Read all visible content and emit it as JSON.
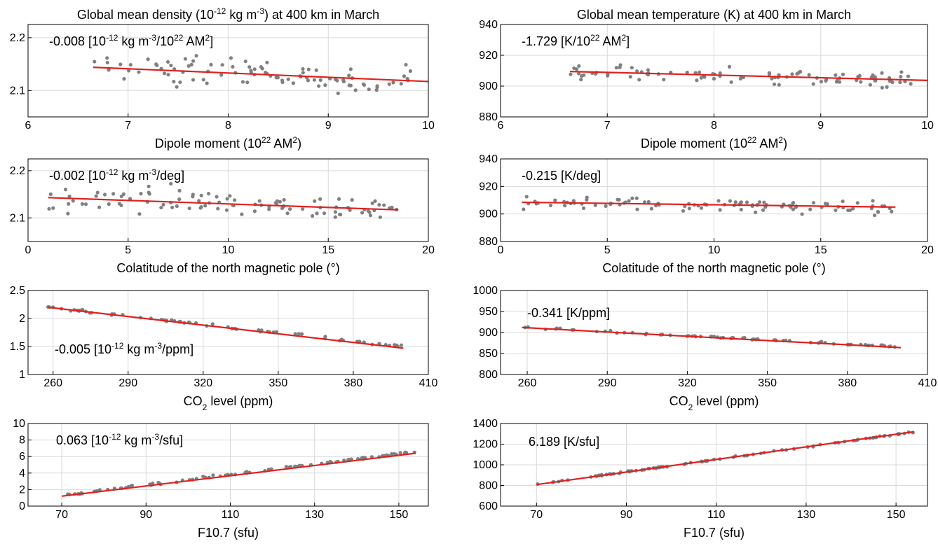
{
  "colors": {
    "points": "#808080",
    "fit": "#e02020",
    "grid": "#d9d9d9",
    "axis": "#000000"
  },
  "chart_data": [
    {
      "type": "scatter",
      "title": "Global mean density (10^-12 kg m^-3) at 400 km in March",
      "title_parts": [
        "Global mean density (10",
        "-12",
        " kg m",
        "-3",
        ") at 400 km in March"
      ],
      "xlabel": "Dipole moment (10^22 AM^2)",
      "xlabel_parts": [
        "Dipole moment (10",
        "22",
        " AM",
        "2",
        ")"
      ],
      "ylabel": "",
      "annotation": "-0.008 [10^-12 kg m^-3/10^22 AM^2]",
      "annotation_parts": [
        "-0.008 [10",
        "-12",
        " kg m",
        "-3",
        "/10",
        "22",
        " AM",
        "2",
        "]"
      ],
      "xlim": [
        6,
        10
      ],
      "ylim": [
        2.05,
        2.225
      ],
      "xticks": [
        6,
        7,
        8,
        9,
        10
      ],
      "yticks": [
        2.1,
        2.2
      ],
      "fit": {
        "x": [
          6.65,
          10.0
        ],
        "y": [
          2.144,
          2.117
        ]
      },
      "points": {
        "x_range": [
          6.65,
          9.85
        ],
        "y_mean": [
          2.144,
          2.118
        ],
        "y_spread": 0.022,
        "n": 95
      }
    },
    {
      "type": "scatter",
      "title": "Global mean temperature (K) at 400 km in March",
      "title_parts": [
        "Global mean temperature (K) at 400 km in March"
      ],
      "xlabel": "Dipole moment (10^22 AM^2)",
      "xlabel_parts": [
        "Dipole moment (10",
        "22",
        " AM",
        "2",
        ")"
      ],
      "ylabel": "",
      "annotation": "-1.729 [K/10^22 AM^2]",
      "annotation_parts": [
        "-1.729 [K/10",
        "22",
        " AM",
        "2",
        "]"
      ],
      "xlim": [
        6,
        10
      ],
      "ylim": [
        880,
        940
      ],
      "xticks": [
        6,
        7,
        8,
        9,
        10
      ],
      "yticks": [
        880,
        900,
        920,
        940
      ],
      "fit": {
        "x": [
          6.65,
          10.0
        ],
        "y": [
          909.5,
          903.7
        ]
      },
      "points": {
        "x_range": [
          6.65,
          9.85
        ],
        "y_mean": [
          909.5,
          904.0
        ],
        "y_spread": 4,
        "n": 95
      }
    },
    {
      "type": "scatter",
      "title": "",
      "title_parts": [],
      "xlabel": "Colatitude of the north magnetic pole (°)",
      "xlabel_parts": [
        "Colatitude of the north magnetic pole (°)"
      ],
      "ylabel": "",
      "annotation": "-0.002 [10^-12 kg m^-3/deg]",
      "annotation_parts": [
        "-0.002 [10",
        "-12",
        " kg m",
        "-3",
        "/deg]"
      ],
      "xlim": [
        0,
        20
      ],
      "ylim": [
        2.05,
        2.225
      ],
      "xticks": [
        0,
        5,
        10,
        15,
        20
      ],
      "yticks": [
        2.1,
        2.2
      ],
      "fit": {
        "x": [
          1.0,
          18.5
        ],
        "y": [
          2.143,
          2.117
        ]
      },
      "points": {
        "x_range": [
          1.0,
          18.5
        ],
        "y_mean": [
          2.143,
          2.118
        ],
        "y_spread": 0.024,
        "n": 100
      }
    },
    {
      "type": "scatter",
      "title": "",
      "title_parts": [],
      "xlabel": "Colatitude of the north magnetic pole (°)",
      "xlabel_parts": [
        "Colatitude of the north magnetic pole (°)"
      ],
      "ylabel": "",
      "annotation": "-0.215 [K/deg]",
      "annotation_parts": [
        "-0.215 [K/deg]"
      ],
      "xlim": [
        0,
        20
      ],
      "ylim": [
        880,
        940
      ],
      "xticks": [
        0,
        5,
        10,
        15,
        20
      ],
      "yticks": [
        880,
        900,
        920,
        940
      ],
      "fit": {
        "x": [
          1.0,
          18.5
        ],
        "y": [
          908.5,
          905.0
        ]
      },
      "points": {
        "x_range": [
          1.0,
          18.5
        ],
        "y_mean": [
          908.5,
          905.0
        ],
        "y_spread": 4,
        "n": 100
      }
    },
    {
      "type": "scatter",
      "title": "",
      "title_parts": [],
      "xlabel": "CO2 level (ppm)",
      "xlabel_parts": [
        "CO",
        "2",
        " level (ppm)"
      ],
      "ylabel": "",
      "annotation": "-0.005 [10^-12 kg m^-3/ppm]",
      "annotation_parts": [
        "-0.005 [10",
        "-12",
        " kg m",
        "-3",
        "/ppm]"
      ],
      "xlim": [
        250,
        410
      ],
      "ylim": [
        1,
        2.5
      ],
      "xticks": [
        260,
        290,
        320,
        350,
        380,
        410
      ],
      "yticks": [
        1,
        1.5,
        2,
        2.5
      ],
      "fit": {
        "x": [
          258,
          400
        ],
        "y": [
          2.2,
          1.47
        ]
      },
      "points": {
        "x_range": [
          258,
          400
        ],
        "y_mean": [
          2.2,
          1.5
        ],
        "y_spread": 0.02,
        "n": 70
      }
    },
    {
      "type": "scatter",
      "title": "",
      "title_parts": [],
      "xlabel": "CO2 level (ppm)",
      "xlabel_parts": [
        "CO",
        "2",
        " level (ppm)"
      ],
      "ylabel": "",
      "annotation": "-0.341 [K/ppm]",
      "annotation_parts": [
        "-0.341 [K/ppm]"
      ],
      "xlim": [
        250,
        410
      ],
      "ylim": [
        800,
        1000
      ],
      "xticks": [
        260,
        290,
        320,
        350,
        380,
        410
      ],
      "yticks": [
        800,
        850,
        900,
        950,
        1000
      ],
      "fit": {
        "x": [
          258,
          400
        ],
        "y": [
          912,
          864
        ]
      },
      "points": {
        "x_range": [
          258,
          400
        ],
        "y_mean": [
          912,
          866
        ],
        "y_spread": 2,
        "n": 70
      }
    },
    {
      "type": "scatter",
      "title": "",
      "title_parts": [],
      "xlabel": "F10.7 (sfu)",
      "xlabel_parts": [
        "F10.7 (sfu)"
      ],
      "ylabel": "",
      "annotation": "0.063 [10^-12 kg m^-3/sfu]",
      "annotation_parts": [
        "0.063 [10",
        "-12",
        " kg m",
        "-3",
        "/sfu]"
      ],
      "xlim": [
        62,
        157
      ],
      "ylim": [
        0,
        10
      ],
      "xticks": [
        70,
        90,
        110,
        130,
        150
      ],
      "yticks": [
        0,
        2,
        4,
        6,
        8,
        10
      ],
      "fit": {
        "x": [
          70,
          154
        ],
        "y": [
          1.2,
          6.4
        ]
      },
      "points": {
        "x_range": [
          70,
          154
        ],
        "y_mean": [
          1.3,
          6.6
        ],
        "y_spread": 0.12,
        "n": 90
      }
    },
    {
      "type": "scatter",
      "title": "",
      "title_parts": [],
      "xlabel": "F10.7 (sfu)",
      "xlabel_parts": [
        "F10.7 (sfu)"
      ],
      "ylabel": "",
      "annotation": "6.189 [K/sfu]",
      "annotation_parts": [
        "6.189 [K/sfu]"
      ],
      "xlim": [
        62,
        157
      ],
      "ylim": [
        600,
        1400
      ],
      "xticks": [
        70,
        90,
        110,
        130,
        150
      ],
      "yticks": [
        600,
        800,
        1000,
        1200,
        1400
      ],
      "fit": {
        "x": [
          70,
          154
        ],
        "y": [
          808,
          1320
        ]
      },
      "points": {
        "x_range": [
          70,
          154
        ],
        "y_mean": [
          810,
          1318
        ],
        "y_spread": 5,
        "n": 90
      }
    }
  ]
}
